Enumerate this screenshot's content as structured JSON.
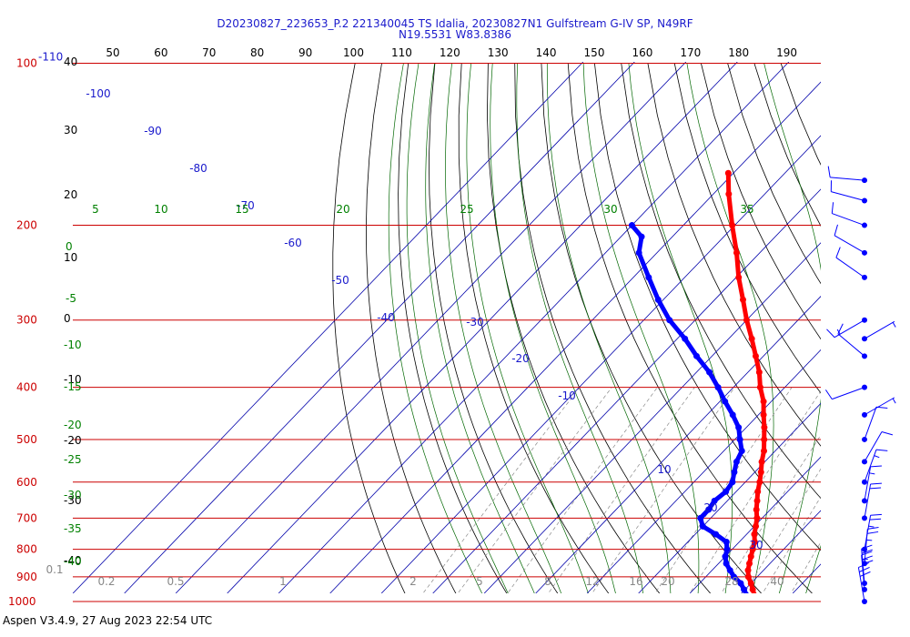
{
  "header": {
    "line1": "D20230827_223653_P.2 221340045 TS Idalia, 20230827N1 Gulfstream G-IV SP, N49RF",
    "line2": "N19.5531 W83.8386"
  },
  "footer": {
    "text": "Aspen V3.4.9, 27 Aug 2023  22:54 UTC"
  },
  "chart_data": {
    "type": "line",
    "diagram": "Skew-T log-P",
    "pressure_levels": [
      {
        "p": 100,
        "label": "100"
      },
      {
        "p": 200,
        "label": "200"
      },
      {
        "p": 300,
        "label": "300"
      },
      {
        "p": 400,
        "label": "400"
      },
      {
        "p": 500,
        "label": "500"
      },
      {
        "p": 600,
        "label": "600"
      },
      {
        "p": 700,
        "label": "700"
      },
      {
        "p": 800,
        "label": "800"
      },
      {
        "p": 900,
        "label": "900"
      },
      {
        "p": 1000,
        "label": "1000"
      }
    ],
    "top_left_label": "-110",
    "top_axis_labels": [
      "50",
      "60",
      "70",
      "80",
      "90",
      "100",
      "110",
      "120",
      "130",
      "140",
      "150",
      "160",
      "170",
      "180",
      "190"
    ],
    "left_axis_labels": [
      {
        "text": "40",
        "color": "#000000"
      },
      {
        "text": "30",
        "color": "#000000"
      },
      {
        "text": "20",
        "color": "#000000"
      },
      {
        "text": "10",
        "color": "#000000"
      },
      {
        "text": "0",
        "color": "#000000"
      },
      {
        "text": "-10",
        "color": "#000000"
      },
      {
        "text": "-20",
        "color": "#000000"
      },
      {
        "text": "-30",
        "color": "#000000"
      },
      {
        "text": "-40",
        "color": "#000000"
      },
      {
        "text": "0",
        "color": "#008000"
      },
      {
        "text": "-5",
        "color": "#008000"
      },
      {
        "text": "-10",
        "color": "#008000"
      },
      {
        "text": "-15",
        "color": "#008000"
      },
      {
        "text": "-20",
        "color": "#008000"
      },
      {
        "text": "-25",
        "color": "#008000"
      },
      {
        "text": "-30",
        "color": "#008000"
      },
      {
        "text": "-35",
        "color": "#008000"
      },
      {
        "text": "-40",
        "color": "#008000"
      }
    ],
    "isotherm_labels": [
      "-100",
      "-90",
      "-80",
      "-70",
      "-60",
      "-50",
      "-40",
      "-30",
      "-20",
      "-10",
      "10",
      "20",
      "30"
    ],
    "theta_e_labels": [
      "5",
      "10",
      "15",
      "20",
      "25",
      "30",
      "35"
    ],
    "mixing_ratio_labels": [
      "0.1",
      "0.2",
      "0.5",
      "1",
      "2",
      "5",
      "8",
      "12",
      "16",
      "20",
      "28",
      "40"
    ],
    "isotherms_c": [
      -110,
      -100,
      -90,
      -80,
      -70,
      -60,
      -50,
      -40,
      -30,
      -20,
      -10,
      0,
      10,
      20,
      30,
      40,
      50
    ],
    "temperature_profile": {
      "name": "Temperature",
      "color": "#ff0000",
      "points": [
        {
          "p": 1010,
          "t": 27.0
        },
        {
          "p": 1000,
          "t": 25.5
        },
        {
          "p": 975,
          "t": 23.0
        },
        {
          "p": 950,
          "t": 21.5
        },
        {
          "p": 925,
          "t": 20.0
        },
        {
          "p": 900,
          "t": 18.3
        },
        {
          "p": 875,
          "t": 17.0
        },
        {
          "p": 850,
          "t": 16.0
        },
        {
          "p": 825,
          "t": 15.0
        },
        {
          "p": 800,
          "t": 14.0
        },
        {
          "p": 775,
          "t": 13.0
        },
        {
          "p": 750,
          "t": 11.5
        },
        {
          "p": 725,
          "t": 10.3
        },
        {
          "p": 700,
          "t": 9.0
        },
        {
          "p": 675,
          "t": 7.3
        },
        {
          "p": 650,
          "t": 5.8
        },
        {
          "p": 625,
          "t": 4.2
        },
        {
          "p": 600,
          "t": 2.8
        },
        {
          "p": 575,
          "t": 1.2
        },
        {
          "p": 550,
          "t": -0.6
        },
        {
          "p": 525,
          "t": -2.2
        },
        {
          "p": 500,
          "t": -4.3
        },
        {
          "p": 475,
          "t": -6.5
        },
        {
          "p": 450,
          "t": -9.0
        },
        {
          "p": 425,
          "t": -11.5
        },
        {
          "p": 400,
          "t": -14.8
        },
        {
          "p": 375,
          "t": -17.8
        },
        {
          "p": 350,
          "t": -21.5
        },
        {
          "p": 325,
          "t": -25.5
        },
        {
          "p": 300,
          "t": -30.0
        },
        {
          "p": 275,
          "t": -34.5
        },
        {
          "p": 250,
          "t": -39.5
        },
        {
          "p": 225,
          "t": -44.5
        },
        {
          "p": 200,
          "t": -50.5
        },
        {
          "p": 175,
          "t": -57.0
        },
        {
          "p": 160,
          "t": -61.0
        }
      ]
    },
    "dewpoint_profile": {
      "name": "Dewpoint",
      "color": "#0000ff",
      "points": [
        {
          "p": 1000,
          "t": 23.0
        },
        {
          "p": 975,
          "t": 21.5
        },
        {
          "p": 950,
          "t": 19.8
        },
        {
          "p": 925,
          "t": 18.0
        },
        {
          "p": 900,
          "t": 15.5
        },
        {
          "p": 875,
          "t": 13.5
        },
        {
          "p": 850,
          "t": 11.5
        },
        {
          "p": 825,
          "t": 10.0
        },
        {
          "p": 800,
          "t": 9.0
        },
        {
          "p": 775,
          "t": 7.5
        },
        {
          "p": 750,
          "t": 4.0
        },
        {
          "p": 725,
          "t": 0.0
        },
        {
          "p": 700,
          "t": -2.0
        },
        {
          "p": 675,
          "t": -2.0
        },
        {
          "p": 650,
          "t": -2.5
        },
        {
          "p": 625,
          "t": -2.0
        },
        {
          "p": 600,
          "t": -2.5
        },
        {
          "p": 575,
          "t": -4.0
        },
        {
          "p": 550,
          "t": -5.5
        },
        {
          "p": 525,
          "t": -6.5
        },
        {
          "p": 500,
          "t": -9.0
        },
        {
          "p": 475,
          "t": -11.5
        },
        {
          "p": 450,
          "t": -15.0
        },
        {
          "p": 425,
          "t": -19.0
        },
        {
          "p": 400,
          "t": -23.0
        },
        {
          "p": 375,
          "t": -27.5
        },
        {
          "p": 350,
          "t": -33.0
        },
        {
          "p": 325,
          "t": -38.5
        },
        {
          "p": 300,
          "t": -45.0
        },
        {
          "p": 275,
          "t": -51.0
        },
        {
          "p": 250,
          "t": -57.0
        },
        {
          "p": 225,
          "t": -63.5
        },
        {
          "p": 210,
          "t": -66.0
        },
        {
          "p": 200,
          "t": -70.0
        }
      ]
    },
    "wind_barbs": [
      {
        "p": 165,
        "speed_kt": 10,
        "dir_deg": 275
      },
      {
        "p": 180,
        "speed_kt": 10,
        "dir_deg": 285
      },
      {
        "p": 200,
        "speed_kt": 10,
        "dir_deg": 290
      },
      {
        "p": 225,
        "speed_kt": 10,
        "dir_deg": 300
      },
      {
        "p": 250,
        "speed_kt": 10,
        "dir_deg": 305
      },
      {
        "p": 300,
        "speed_kt": 15,
        "dir_deg": 240
      },
      {
        "p": 325,
        "speed_kt": 5,
        "dir_deg": 60
      },
      {
        "p": 350,
        "speed_kt": 10,
        "dir_deg": 310
      },
      {
        "p": 400,
        "speed_kt": 10,
        "dir_deg": 250
      },
      {
        "p": 450,
        "speed_kt": 5,
        "dir_deg": 60
      },
      {
        "p": 500,
        "speed_kt": 10,
        "dir_deg": 20
      },
      {
        "p": 550,
        "speed_kt": 10,
        "dir_deg": 30
      },
      {
        "p": 600,
        "speed_kt": 15,
        "dir_deg": 20
      },
      {
        "p": 650,
        "speed_kt": 15,
        "dir_deg": 10
      },
      {
        "p": 700,
        "speed_kt": 20,
        "dir_deg": 10
      },
      {
        "p": 800,
        "speed_kt": 25,
        "dir_deg": 10
      },
      {
        "p": 850,
        "speed_kt": 25,
        "dir_deg": 5
      },
      {
        "p": 925,
        "speed_kt": 25,
        "dir_deg": 355
      },
      {
        "p": 950,
        "speed_kt": 30,
        "dir_deg": 355
      },
      {
        "p": 1000,
        "speed_kt": 30,
        "dir_deg": 350
      }
    ]
  },
  "colors": {
    "title": "#1a1acc",
    "isobar": "#cc0000",
    "isotherm": "#0000aa",
    "dry_adiabat": "#000000",
    "moist_adiabat": "#006600",
    "mixing_ratio": "#888888",
    "temperature": "#ff0000",
    "dewpoint": "#0000ff"
  }
}
